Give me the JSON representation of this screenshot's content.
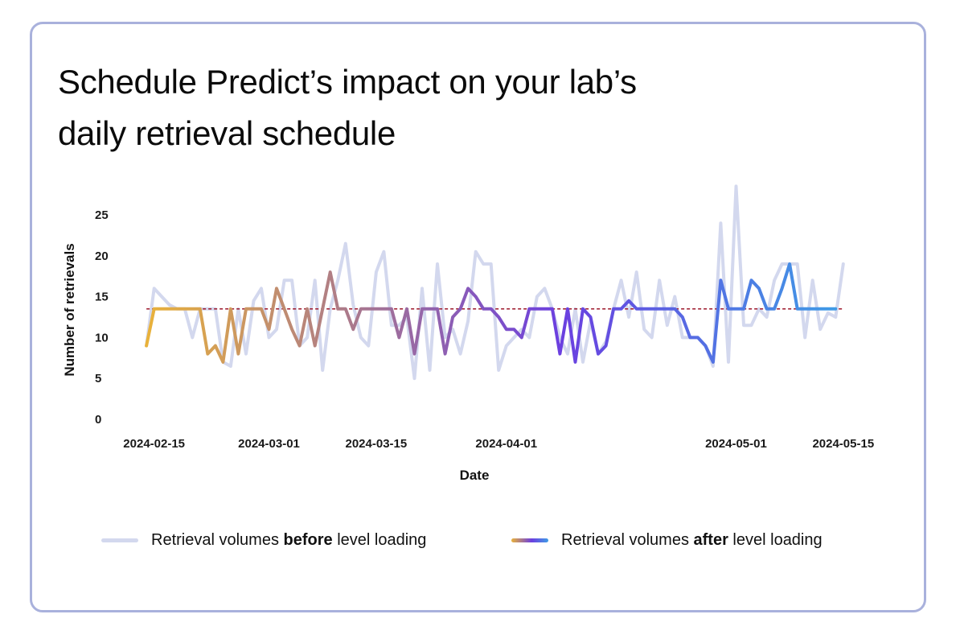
{
  "title_lines": [
    "Schedule Predict’s impact on your lab’s",
    "daily retrieval schedule"
  ],
  "legend": {
    "before": {
      "prefix": "Retrieval volumes ",
      "bold": "before",
      "suffix": " level loading"
    },
    "after": {
      "prefix": "Retrieval volumes ",
      "bold": "after",
      "suffix": " level loading"
    }
  },
  "colors": {
    "before": "#d3d8ee",
    "after_start": "#e9b23a",
    "after_mid": "#6b3fe0",
    "after_end": "#3f9be6",
    "target": "#a3283a",
    "border": "#a9b1dc"
  },
  "chart_data": {
    "type": "line",
    "title": "Schedule Predict’s impact on your lab’s daily retrieval schedule",
    "xlabel": "Date",
    "ylabel": "Number of retrievals",
    "ylim": [
      0,
      25
    ],
    "yticks": [
      0,
      5,
      10,
      15,
      20,
      25
    ],
    "xticks": [
      {
        "day": 0,
        "label": "2024-02-15"
      },
      {
        "day": 15,
        "label": "2024-03-01"
      },
      {
        "day": 29,
        "label": "2024-03-15"
      },
      {
        "day": 46,
        "label": "2024-04-01"
      },
      {
        "day": 76,
        "label": "2024-05-01"
      },
      {
        "day": 90,
        "label": "2024-05-15"
      }
    ],
    "xrange_days": [
      -7,
      98
    ],
    "x_start_day": -1,
    "target_level": 13.5,
    "series": [
      {
        "name": "Retrieval volumes before level loading",
        "values": [
          9,
          16,
          15,
          14,
          13.5,
          13.5,
          10,
          13.5,
          13.5,
          13.5,
          7,
          6.5,
          13.5,
          8,
          14.5,
          16,
          10,
          11,
          17,
          17,
          9,
          10,
          17,
          6,
          13.5,
          17,
          21.5,
          14,
          10,
          9,
          18,
          20.5,
          11.5,
          11.5,
          12.5,
          5,
          16,
          6,
          19,
          10,
          11,
          8,
          12,
          20.5,
          19,
          19,
          6,
          9,
          10,
          11,
          10,
          15,
          16,
          13.5,
          10,
          8,
          13.5,
          7,
          12,
          8,
          9.5,
          13.5,
          17,
          12.5,
          18,
          11,
          10,
          17,
          11.5,
          15,
          10,
          10,
          10,
          9,
          6.5,
          24,
          7,
          28.5,
          11.5,
          11.5,
          13.5,
          12.5,
          17,
          19,
          19,
          19,
          10,
          17,
          11,
          13,
          12.5,
          19
        ]
      },
      {
        "name": "Retrieval volumes after level loading",
        "values": [
          9,
          13.5,
          13.5,
          13.5,
          13.5,
          13.5,
          13.5,
          13.5,
          8,
          9,
          7,
          13.5,
          8,
          13.5,
          13.5,
          13.5,
          11,
          16,
          13.5,
          11,
          9,
          13.5,
          9,
          13.5,
          18,
          13.5,
          13.5,
          11,
          13.5,
          13.5,
          13.5,
          13.5,
          13.5,
          10,
          13.5,
          8,
          13.5,
          13.5,
          13.5,
          8,
          12.5,
          13.5,
          16,
          15,
          13.5,
          13.5,
          12.5,
          11,
          11,
          10,
          13.5,
          13.5,
          13.5,
          13.5,
          8,
          13.5,
          7,
          13.5,
          12.5,
          8,
          9,
          13.5,
          13.5,
          14.5,
          13.5,
          13.5,
          13.5,
          13.5,
          13.5,
          13.5,
          12.5,
          10,
          10,
          9,
          7,
          17,
          13.5,
          13.5,
          13.5,
          17,
          16,
          13.5,
          13.5,
          16,
          19,
          13.5,
          13.5,
          13.5,
          13.5,
          13.5,
          13.5
        ]
      }
    ]
  }
}
